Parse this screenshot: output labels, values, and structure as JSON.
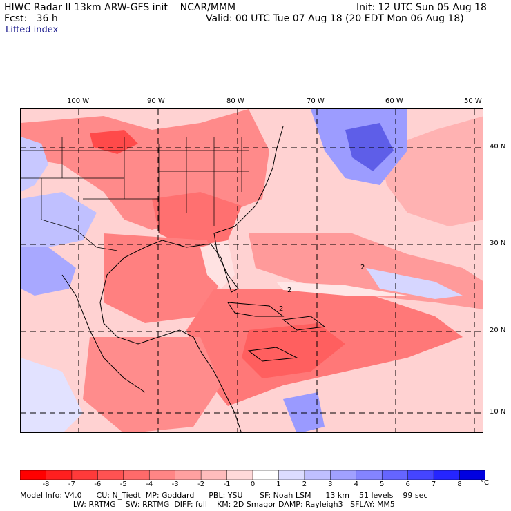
{
  "header": {
    "title_line1": "HIWC Radar II 13km ARW-GFS init    NCAR/MMM",
    "fcst_line": "Fcst:   36 h",
    "init_line": "Init: 12 UTC Sun 05 Aug 18",
    "valid_line": "Valid: 00 UTC Tue 07 Aug 18 (20 EDT Mon 06 Aug 18)",
    "field_name": "Lifted index"
  },
  "map": {
    "longitude_labels": [
      "100 W",
      "90 W",
      "80 W",
      "70 W",
      "60 W",
      "50 W"
    ],
    "latitude_labels": [
      "40 N",
      "30 N",
      "20 N",
      "10 N"
    ],
    "contour_labels": [
      "2",
      "2",
      "2"
    ]
  },
  "colorbar": {
    "unit": "°C",
    "tick_labels": [
      "-8",
      "-7",
      "-6",
      "-5",
      "-4",
      "-3",
      "-2",
      "-1",
      "0",
      "1",
      "2",
      "3",
      "4",
      "5",
      "6",
      "7",
      "8"
    ],
    "colors": [
      "#ff0000",
      "#ff1f1f",
      "#ff3a3a",
      "#ff5252",
      "#ff6a6a",
      "#ff8585",
      "#ffa0a0",
      "#ffbcbc",
      "#ffd9d9",
      "#ffffff",
      "#dcdcff",
      "#bfbfff",
      "#a1a1ff",
      "#8484ff",
      "#6565ff",
      "#4545ff",
      "#2525ff",
      "#0000e0"
    ]
  },
  "model_info": {
    "line1": "Model Info: V4.0      CU: N_Tiedt  MP: Goddard      PBL: YSU       SF: Noah LSM      13 km    51 levels    99 sec",
    "line2": "                      LW: RRTMG    SW: RRTMG  DIFF: full    KM: 2D Smagor DAMP: Rayleigh3   SFLAY: MM5"
  }
}
